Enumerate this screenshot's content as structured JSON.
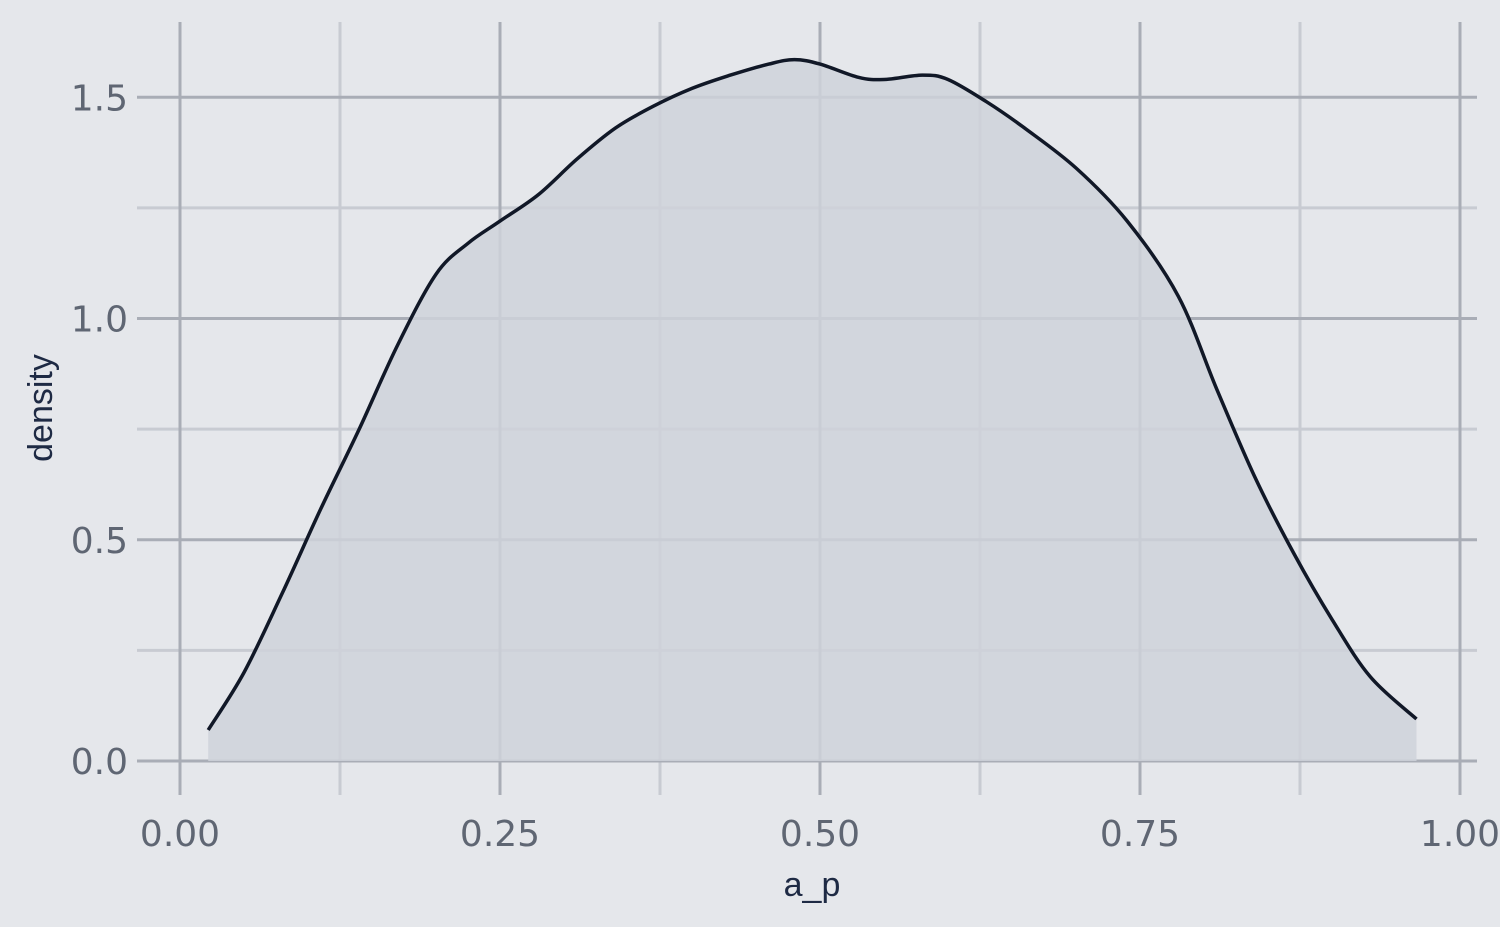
{
  "chart_data": {
    "type": "area",
    "title": "",
    "xlabel": "a_p",
    "ylabel": "density",
    "xlim": [
      0,
      1
    ],
    "ylim": [
      0,
      1.6
    ],
    "x_ticks": [
      {
        "value": 0,
        "label": "0.00"
      },
      {
        "value": 0.25,
        "label": "0.25"
      },
      {
        "value": 0.5,
        "label": "0.50"
      },
      {
        "value": 0.75,
        "label": "0.75"
      },
      {
        "value": 1,
        "label": "1.00"
      }
    ],
    "y_ticks": [
      {
        "value": 0,
        "label": "0.0"
      },
      {
        "value": 0.5,
        "label": "0.5"
      },
      {
        "value": 1,
        "label": "1.0"
      },
      {
        "value": 1.5,
        "label": "1.5"
      }
    ],
    "grid": true,
    "series": [
      {
        "x": [
          0.022,
          0.05,
          0.08,
          0.11,
          0.14,
          0.17,
          0.2,
          0.225,
          0.25,
          0.28,
          0.31,
          0.34,
          0.37,
          0.4,
          0.43,
          0.46,
          0.48,
          0.5,
          0.53,
          0.55,
          0.58,
          0.6,
          0.63,
          0.66,
          0.7,
          0.74,
          0.78,
          0.81,
          0.84,
          0.87,
          0.9,
          0.93,
          0.966
        ],
        "values": [
          0.07,
          0.2,
          0.38,
          0.57,
          0.75,
          0.94,
          1.1,
          1.17,
          1.22,
          1.28,
          1.36,
          1.43,
          1.48,
          1.52,
          1.55,
          1.575,
          1.585,
          1.575,
          1.545,
          1.54,
          1.55,
          1.54,
          1.49,
          1.43,
          1.34,
          1.22,
          1.05,
          0.84,
          0.64,
          0.47,
          0.32,
          0.19,
          0.095
        ]
      }
    ],
    "colors": {
      "background": "#e5e7eb",
      "fill": "#cfd2da",
      "line": "#111827",
      "grid_major": "#a9adb6",
      "grid_minor": "#c8cbd2",
      "tick_text": "#5f6673",
      "axis_title": "#1e2a44"
    }
  }
}
